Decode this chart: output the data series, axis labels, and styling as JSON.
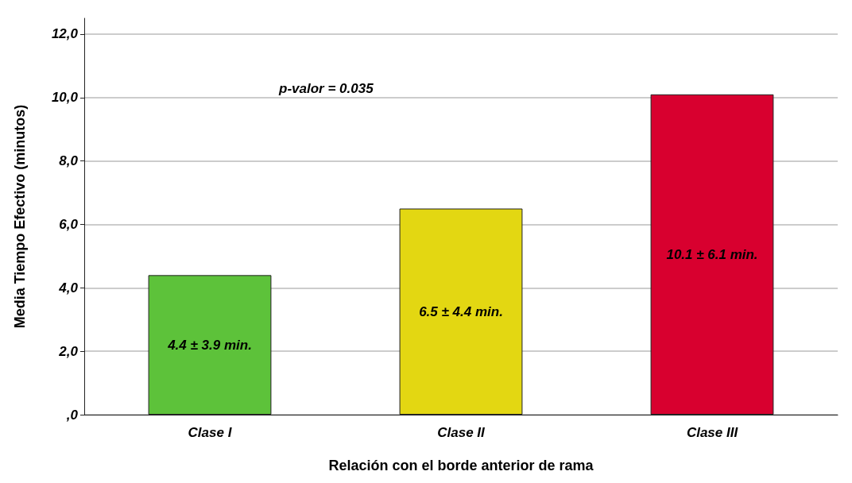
{
  "chart_data": {
    "type": "bar",
    "xlabel": "Relación con el borde anterior de rama",
    "ylabel": "Media Tiempo Efectivo (minutos)",
    "categories": [
      "Clase I",
      "Clase II",
      "Clase III"
    ],
    "values": [
      4.4,
      6.5,
      10.1
    ],
    "colors": [
      "#5dc23a",
      "#e3d712",
      "#d8002f"
    ],
    "value_labels": [
      "4.4 ± 3.9 min.",
      "6.5 ± 4.4 min.",
      "10.1 ± 6.1 min."
    ],
    "ylim": [
      0,
      12.5
    ],
    "yticks": [
      {
        "value": 0,
        "label": ",0"
      },
      {
        "value": 2,
        "label": "2,0"
      },
      {
        "value": 4,
        "label": "4,0"
      },
      {
        "value": 6,
        "label": "6,0"
      },
      {
        "value": 8,
        "label": "8,0"
      },
      {
        "value": 10,
        "label": "10,0"
      },
      {
        "value": 12,
        "label": "12,0"
      }
    ],
    "grid": "y",
    "annotations": [
      "p-valor = 0.035"
    ]
  }
}
